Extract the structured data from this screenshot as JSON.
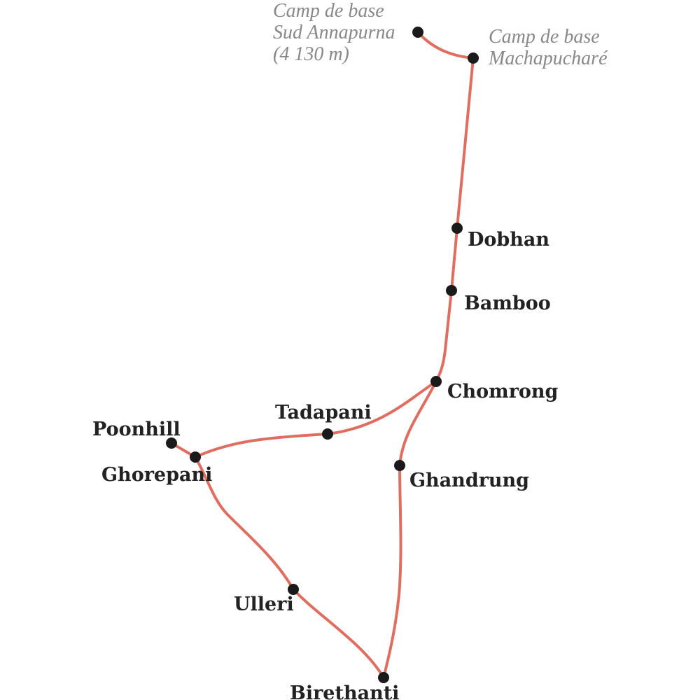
{
  "colors": {
    "route": "#e06e60",
    "stop": "#1a1a1a",
    "label": "#222222",
    "label_muted": "#888888"
  },
  "places": {
    "abc": {
      "lines": [
        "Camp de base",
        "Sud Annapurna",
        "(4 130 m)"
      ]
    },
    "mbc": {
      "lines": [
        "Camp de base",
        "Machapucharé"
      ]
    },
    "dobhan": "Dobhan",
    "bamboo": "Bamboo",
    "chomrong": "Chomrong",
    "tadapani": "Tadapani",
    "poonhill": "Poonhill",
    "ghorepani": "Ghorepani",
    "ghandrung": "Ghandrung",
    "ulleri": "Ulleri",
    "birethanti": "Birethanti"
  }
}
